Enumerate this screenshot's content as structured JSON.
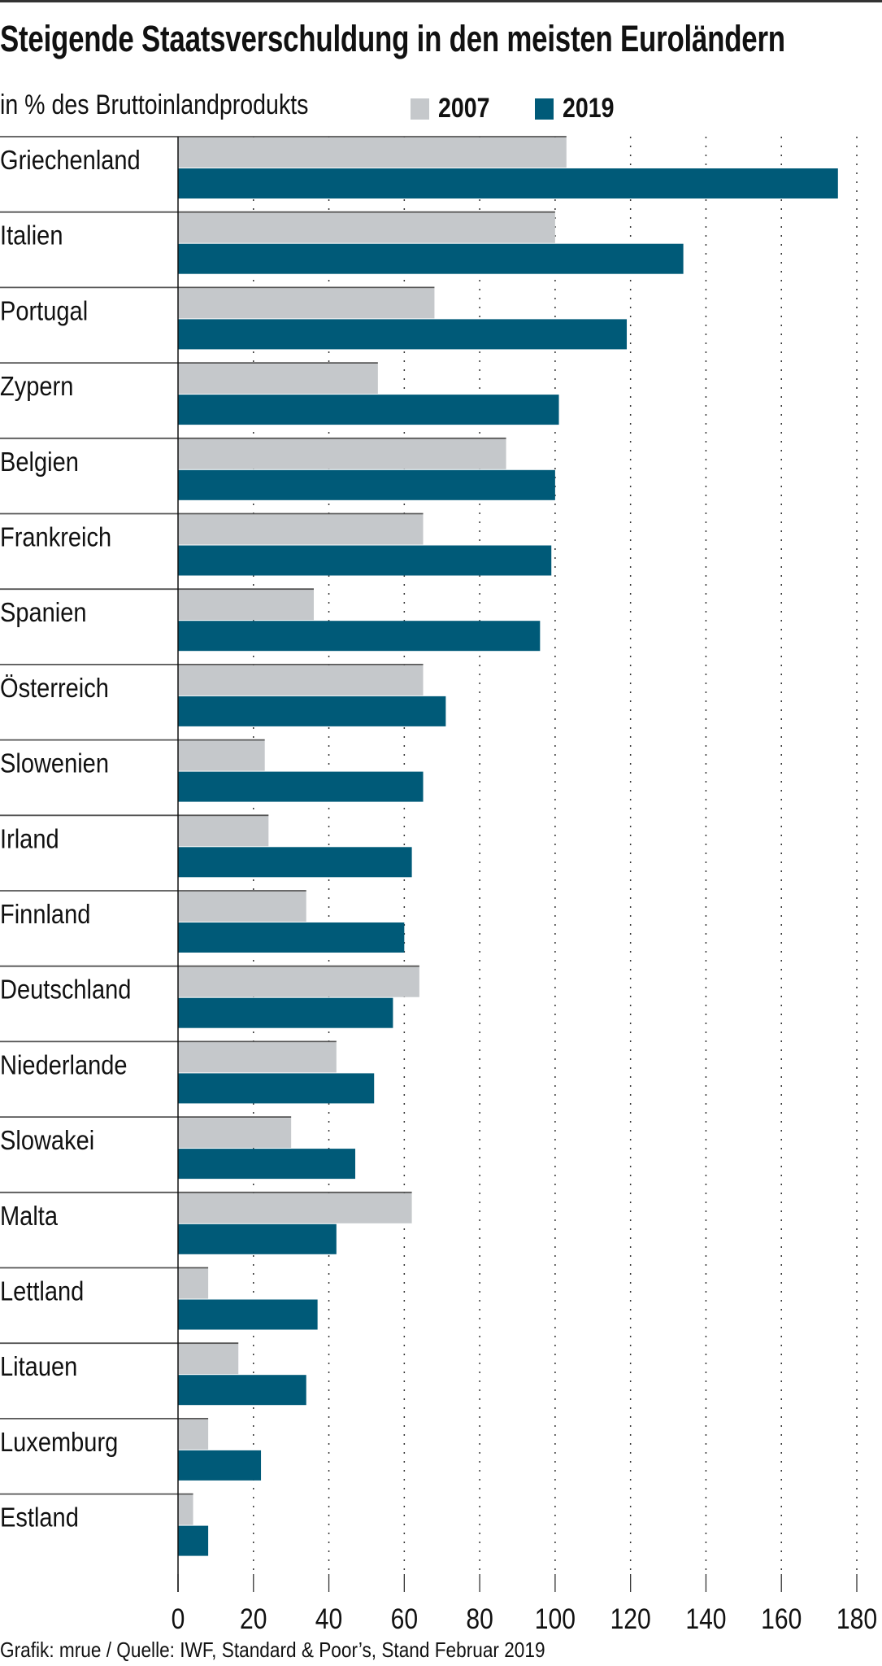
{
  "title": "Steigende Staatsverschuldung in den meisten Euroländern",
  "footer": "Grafik: mrue / Quelle: IWF, Standard & Poor’s, Stand Februar 2019",
  "colors": {
    "s2007": "#c5c8cb",
    "s2019": "#005a78"
  },
  "chart_data": {
    "type": "bar",
    "orientation": "horizontal",
    "title": "Steigende Staatsverschuldung in den meisten Euroländern",
    "subtitle": "in % des Bruttoinlandprodukts",
    "xlabel": "",
    "ylabel": "",
    "xlim": [
      0,
      180
    ],
    "xticks": [
      0,
      20,
      40,
      60,
      80,
      100,
      120,
      140,
      160,
      180
    ],
    "grid": "vertical-dotted",
    "legend": "top",
    "categories": [
      "Griechenland",
      "Italien",
      "Portugal",
      "Zypern",
      "Belgien",
      "Frankreich",
      "Spanien",
      "Österreich",
      "Slowenien",
      "Irland",
      "Finnland",
      "Deutschland",
      "Niederlande",
      "Slowakei",
      "Malta",
      "Lettland",
      "Litauen",
      "Luxemburg",
      "Estland"
    ],
    "series": [
      {
        "name": "2007",
        "values": [
          103,
          100,
          68,
          53,
          87,
          65,
          36,
          65,
          23,
          24,
          34,
          64,
          42,
          30,
          62,
          8,
          16,
          8,
          4
        ]
      },
      {
        "name": "2019",
        "values": [
          175,
          134,
          119,
          101,
          100,
          99,
          96,
          71,
          65,
          62,
          60,
          57,
          52,
          47,
          42,
          37,
          34,
          22,
          8
        ]
      }
    ]
  }
}
